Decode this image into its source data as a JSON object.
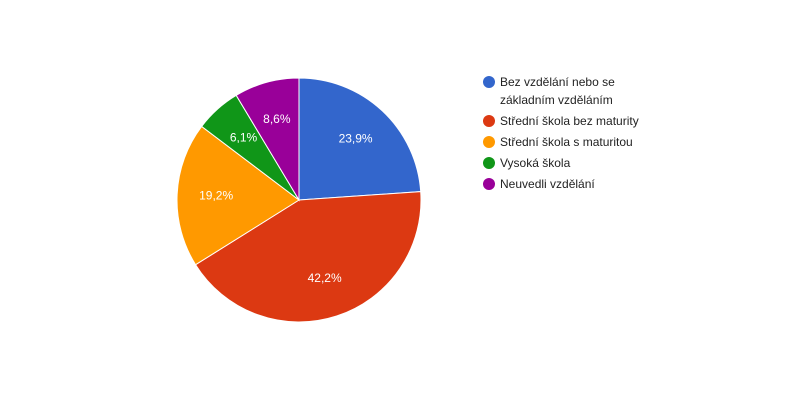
{
  "chart_data": {
    "type": "pie",
    "categories": [
      "Bez vzdělání nebo se základním vzděláním",
      "Střední škola bez maturity",
      "Střední škola s maturitou",
      "Vysoká škola",
      "Neuvedli vzdělání"
    ],
    "values": [
      23.9,
      42.2,
      19.2,
      6.1,
      8.6
    ],
    "value_labels": [
      "23,9%",
      "42,2%",
      "19,2%",
      "6,1%",
      "8,6%"
    ],
    "colors": [
      "#3366cc",
      "#dc3912",
      "#ff9900",
      "#109618",
      "#990099"
    ],
    "legend": "right"
  }
}
